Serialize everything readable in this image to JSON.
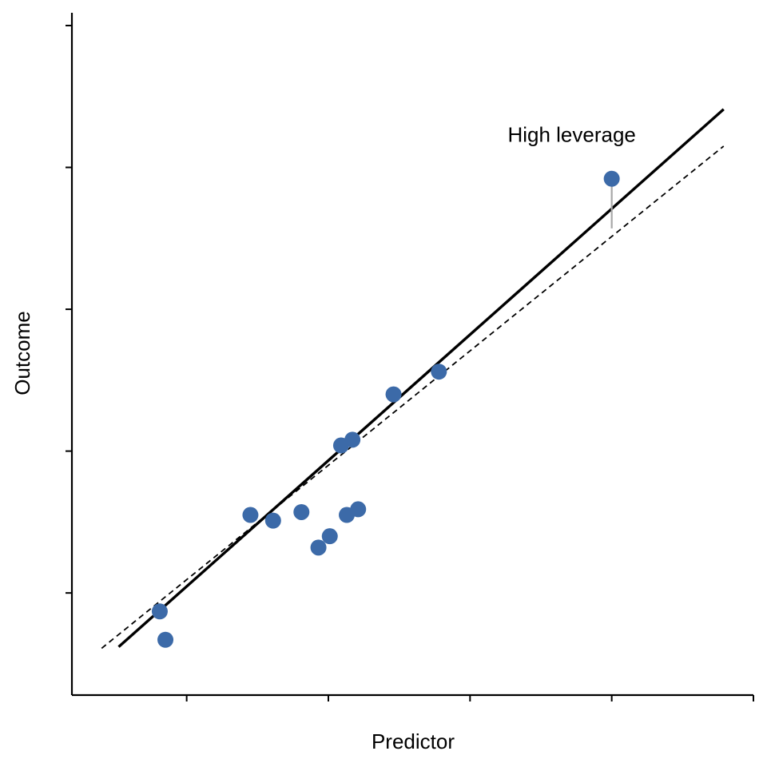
{
  "chart_data": {
    "type": "scatter",
    "title": "",
    "xlabel": "Predictor",
    "ylabel": "Outcome",
    "x_ticks": [
      1,
      2,
      3,
      4,
      5
    ],
    "y_ticks": [
      1,
      2,
      3,
      4,
      5
    ],
    "xlim": [
      0.19,
      5.0
    ],
    "ylim": [
      0.28,
      5.09
    ],
    "tick_labels_shown": false,
    "grid": false,
    "point_color": "#3c6aa8",
    "series": [
      {
        "name": "",
        "points": [
          {
            "x": 0.81,
            "y": 0.87
          },
          {
            "x": 0.85,
            "y": 0.67
          },
          {
            "x": 1.45,
            "y": 1.55
          },
          {
            "x": 1.61,
            "y": 1.51
          },
          {
            "x": 1.81,
            "y": 1.57
          },
          {
            "x": 1.93,
            "y": 1.32
          },
          {
            "x": 2.01,
            "y": 1.4
          },
          {
            "x": 2.09,
            "y": 2.04
          },
          {
            "x": 2.17,
            "y": 2.08
          },
          {
            "x": 2.13,
            "y": 1.55
          },
          {
            "x": 2.21,
            "y": 1.59
          },
          {
            "x": 2.46,
            "y": 2.4
          },
          {
            "x": 2.78,
            "y": 2.56
          },
          {
            "x": 4.0,
            "y": 3.92
          }
        ]
      }
    ],
    "fit_lines": [
      {
        "style": "solid",
        "color": "#000000",
        "x": [
          0.52,
          4.79
        ],
        "y": [
          0.62,
          4.41
        ]
      },
      {
        "style": "dashed",
        "color": "#000000",
        "x": [
          0.4,
          4.79
        ],
        "y": [
          0.61,
          4.15
        ]
      }
    ],
    "highlight": {
      "label": "High leverage",
      "x": 4.0,
      "y_point": 3.92,
      "y_line": 3.57,
      "connector_color": "#a8a8a8"
    }
  }
}
